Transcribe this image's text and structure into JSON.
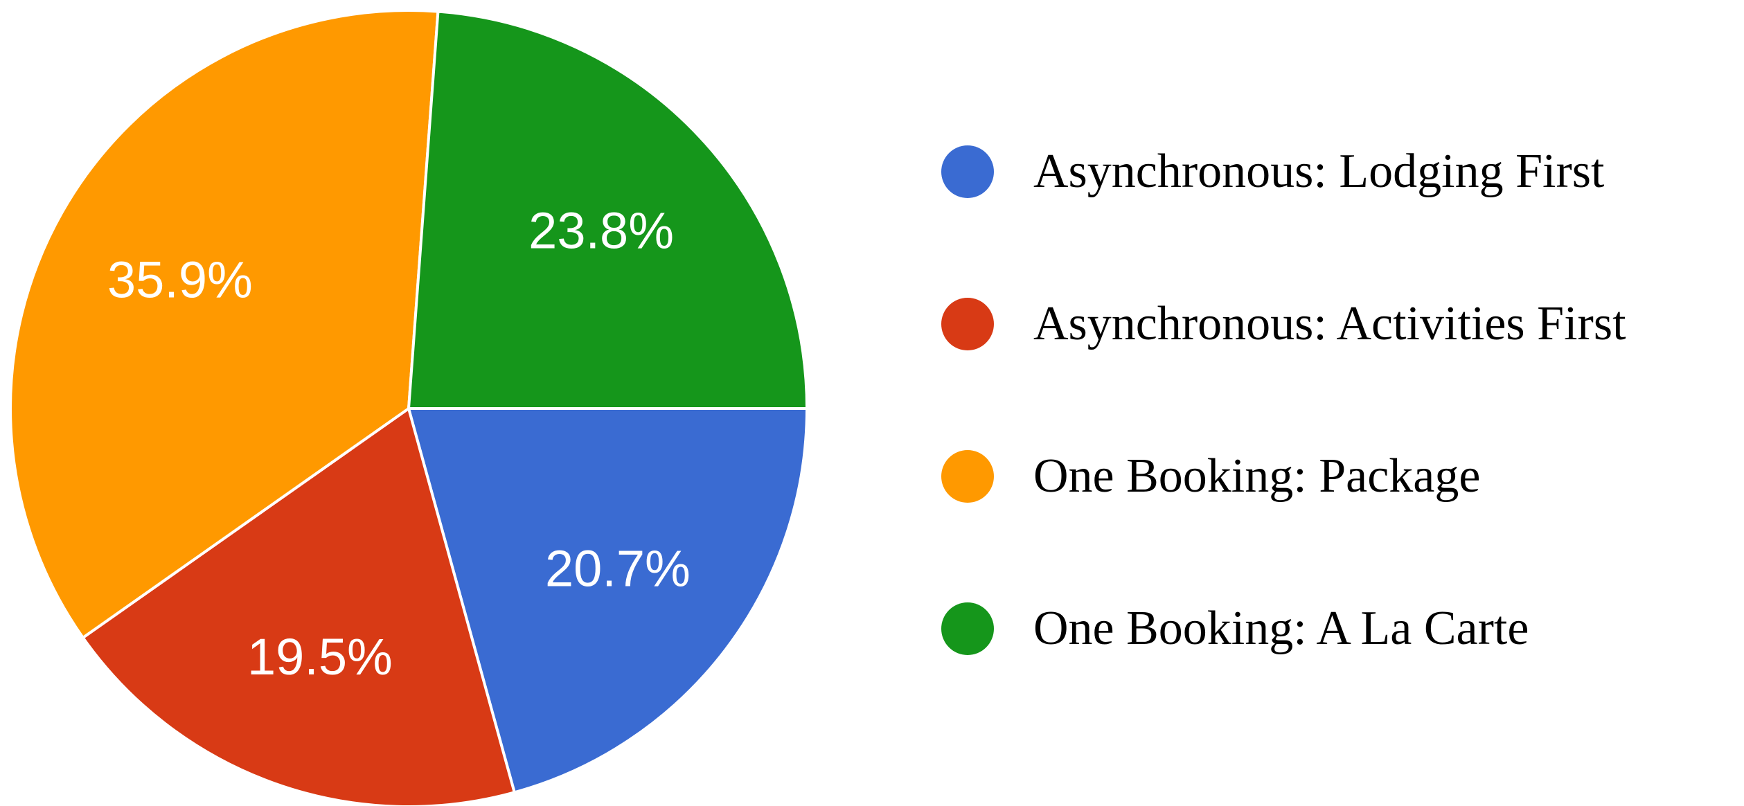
{
  "chart_data": {
    "type": "pie",
    "title": "",
    "legend_position": "right",
    "start_angle_clockwise_from_top_deg": 90,
    "label_radius_fraction": 0.66,
    "slice_label_color": "#FFFFFF",
    "background_color": "#FFFFFF",
    "legend_text_color": "#000000",
    "series": [
      {
        "label": "Asynchronous: Lodging First",
        "value": 20.7,
        "display": "20.7%",
        "color": "#3A6BD2"
      },
      {
        "label": "Asynchronous: Activities First",
        "value": 19.5,
        "display": "19.5%",
        "color": "#D83A15"
      },
      {
        "label": "One Booking: Package",
        "value": 35.9,
        "display": "35.9%",
        "color": "#FF9900"
      },
      {
        "label": "One Booking: A La Carte",
        "value": 23.8,
        "display": "23.8%",
        "color": "#15961B"
      }
    ]
  }
}
